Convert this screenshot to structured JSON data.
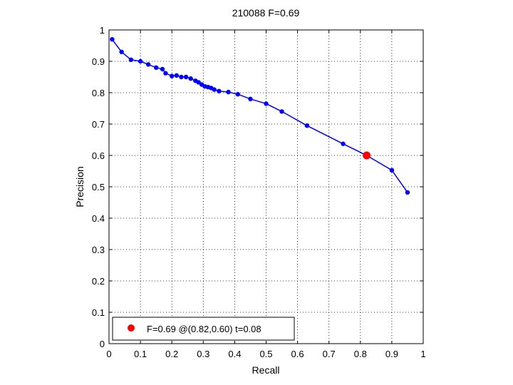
{
  "chart_data": {
    "type": "line",
    "title": "210088 F=0.69",
    "xlabel": "Recall",
    "ylabel": "Precision",
    "xlim": [
      0,
      1
    ],
    "ylim": [
      0,
      1
    ],
    "grid": true,
    "x_ticks": [
      "0",
      "0.1",
      "0.2",
      "0.3",
      "0.4",
      "0.5",
      "0.6",
      "0.7",
      "0.8",
      "0.9",
      "1"
    ],
    "y_ticks": [
      "0",
      "0.1",
      "0.2",
      "0.3",
      "0.4",
      "0.5",
      "0.6",
      "0.7",
      "0.8",
      "0.9",
      "1"
    ],
    "series": [
      {
        "color": "#0000ff",
        "marker": "dot",
        "x": [
          0.01,
          0.04,
          0.07,
          0.1,
          0.125,
          0.15,
          0.17,
          0.18,
          0.2,
          0.215,
          0.23,
          0.245,
          0.26,
          0.275,
          0.285,
          0.295,
          0.305,
          0.315,
          0.325,
          0.335,
          0.35,
          0.38,
          0.41,
          0.45,
          0.5,
          0.55,
          0.63,
          0.745,
          0.82,
          0.9,
          0.95
        ],
        "y": [
          0.97,
          0.93,
          0.905,
          0.9,
          0.89,
          0.88,
          0.875,
          0.862,
          0.853,
          0.855,
          0.85,
          0.85,
          0.845,
          0.838,
          0.833,
          0.826,
          0.82,
          0.818,
          0.815,
          0.81,
          0.805,
          0.802,
          0.795,
          0.78,
          0.765,
          0.74,
          0.695,
          0.637,
          0.6,
          0.553,
          0.482
        ]
      }
    ],
    "best_point": {
      "x": 0.82,
      "y": 0.6,
      "color": "#ff0000"
    },
    "legend": {
      "placement": "bottom-left",
      "text": "F=0.69 @(0.82,0.60) t=0.08"
    }
  }
}
